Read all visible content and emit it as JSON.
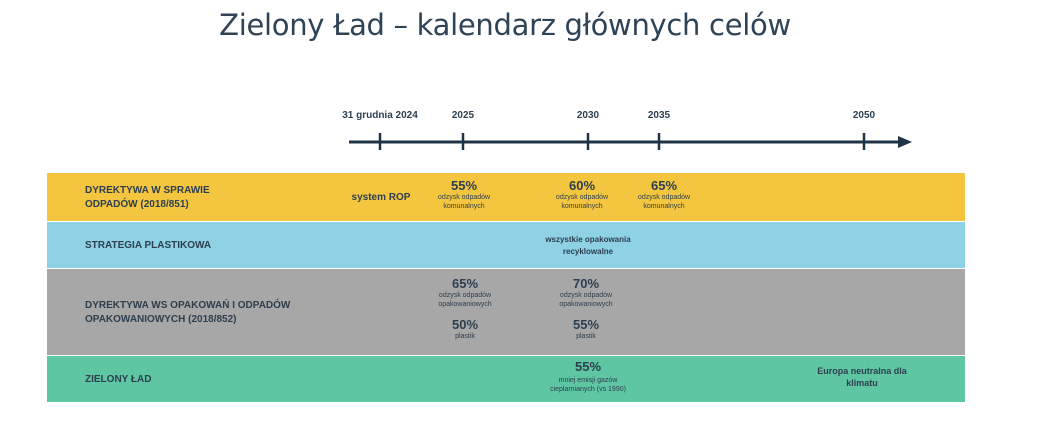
{
  "title": "Zielony Ład – kalendarz głównych celów",
  "timeline": {
    "ticks": [
      "31 grudnia 2024",
      "2025",
      "2030",
      "2035",
      "2050"
    ]
  },
  "rows": {
    "waste": {
      "label_line1": "DYREKTYWA W SPRAWIE",
      "label_line2": "ODPADÓW (2018/851)",
      "system": "system ROP",
      "c2025_pct": "55%",
      "c2025_note1": "odzysk odpadów",
      "c2025_note2": "komunalnych",
      "c2030_pct": "60%",
      "c2030_note1": "odzysk odpadów",
      "c2030_note2": "komunalnych",
      "c2035_pct": "65%",
      "c2035_note1": "odzysk odpadów",
      "c2035_note2": "komunalnych"
    },
    "plastic": {
      "label": "STRATEGIA PLASTIKOWA",
      "text1": "wszystkie opakowania",
      "text2": "recyklowalne"
    },
    "packaging": {
      "label_line1": "DYREKTYWA WS OPAKOWAŃ I ODPADÓW",
      "label_line2": "OPAKOWANIOWYCH (2018/852)",
      "c2025_pct": "65%",
      "c2025_note1": "odzysk odpadów",
      "c2025_note2": "opakowaniowych",
      "c2025_pct2": "50%",
      "c2025_note3": "plastik",
      "c2030_pct": "70%",
      "c2030_note1": "odzysk odpadów",
      "c2030_note2": "opakowaniowych",
      "c2030_pct2": "55%",
      "c2030_note3": "plastik"
    },
    "green": {
      "label": "ZIELONY ŁAD",
      "c2030_pct": "55%",
      "c2030_note1": "mniej emisji gazów",
      "c2030_note2": "cieplarnianych (vs 1990)",
      "c2050_line1": "Europa neutralna dla",
      "c2050_line2": "klimatu"
    }
  },
  "colors": {
    "waste": "#f4c63f",
    "plastic": "#8fd2e6",
    "packaging": "#a7a7a7",
    "green": "#5fc6a4",
    "timeline": "#1f3346"
  }
}
